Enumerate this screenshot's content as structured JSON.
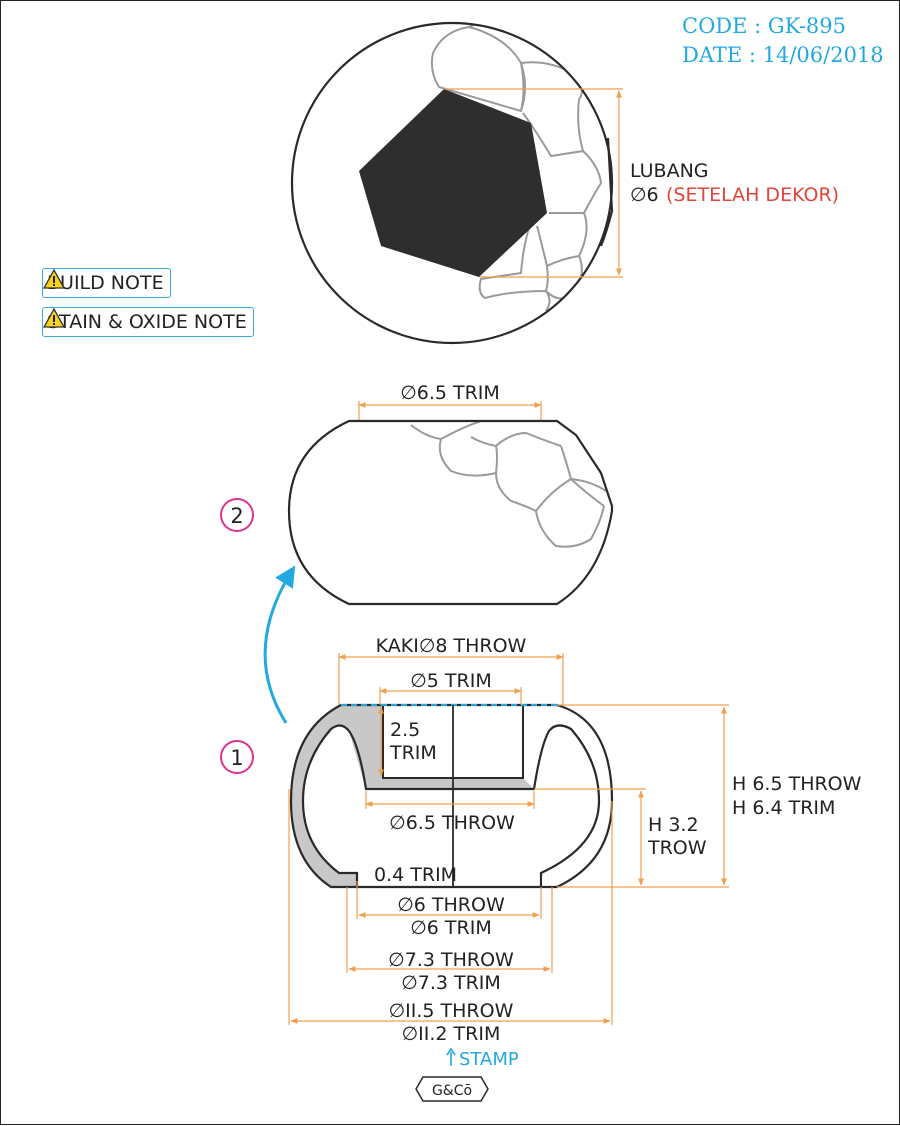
{
  "header": {
    "code": "CODE : GK-895",
    "date": "DATE : 14/06/2018"
  },
  "notes": [
    {
      "label": "BUILD NOTE",
      "icon": "warning-icon"
    },
    {
      "label": "STAIN & OXIDE NOTE",
      "icon": "warning-icon"
    }
  ],
  "top_view": {
    "lubang_label": "LUBANG",
    "lubang_dim": "∅6",
    "lubang_note": "(SETELAH DEKOR)"
  },
  "view2": {
    "number": "2",
    "trim_width": "∅6.5 TRIM"
  },
  "view1": {
    "number": "1",
    "kaki": "KAKI∅8 THROW",
    "trim5": "∅5 TRIM",
    "depth_line1": "2.5",
    "depth_line2": "TRIM",
    "throw65": "∅6.5 THROW",
    "h32_line1": "H 3.2",
    "h32_line2": "TROW",
    "h65_throw": "H 6.5 THROW",
    "h64_trim": "H 6.4 TRIM",
    "wall": "0.4 TRIM",
    "d6_throw": "∅6 THROW",
    "d6_trim": "∅6 TRIM",
    "d73_throw": "∅7.3 THROW",
    "d73_trim": "∅7.3 TRIM",
    "d115_throw": "∅II.5 THROW",
    "d112_trim": "∅II.2 TRIM",
    "stamp": "STAMP",
    "logo": "G&Cō"
  },
  "colors": {
    "dimension": "#f0a050",
    "accent_cyan": "#22a9e0",
    "marker_magenta": "#e0338f",
    "note_red": "#e0443a",
    "fill_gray": "#c8c8c8",
    "tile_gray": "#9a9a9a",
    "hex_black": "#2e2e2e"
  }
}
